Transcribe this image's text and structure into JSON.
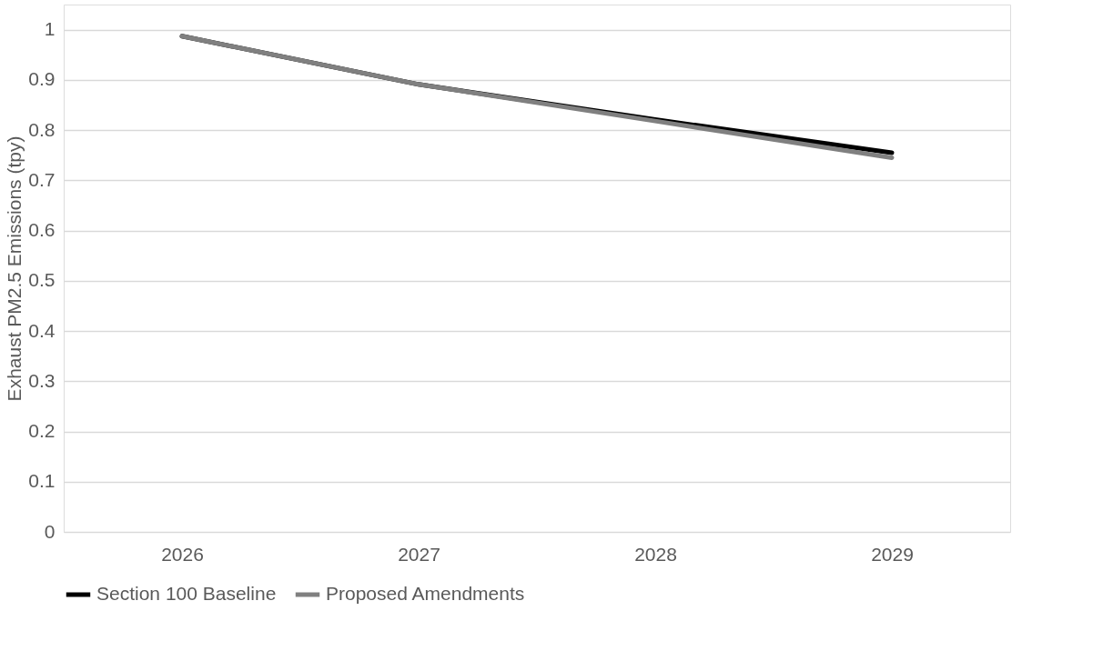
{
  "chart_data": {
    "type": "line",
    "ylabel": "Exhaust  PM2.5 Emissions (tpy)",
    "categories": [
      "2026",
      "2027",
      "2028",
      "2029"
    ],
    "series": [
      {
        "name": "Section 100 Baseline",
        "color": "#000000",
        "values": [
          0.987,
          0.891,
          0.821,
          0.755
        ]
      },
      {
        "name": "Proposed Amendments",
        "color": "#808080",
        "values": [
          0.987,
          0.891,
          0.818,
          0.745
        ]
      }
    ],
    "ylim": [
      0,
      1.05
    ],
    "yticks": [
      0,
      0.1,
      0.2,
      0.3,
      0.4,
      0.5,
      0.6,
      0.7,
      0.8,
      0.9,
      1
    ],
    "grid": "y",
    "legend": "bottom",
    "marker": "none",
    "line_style": "solid"
  }
}
